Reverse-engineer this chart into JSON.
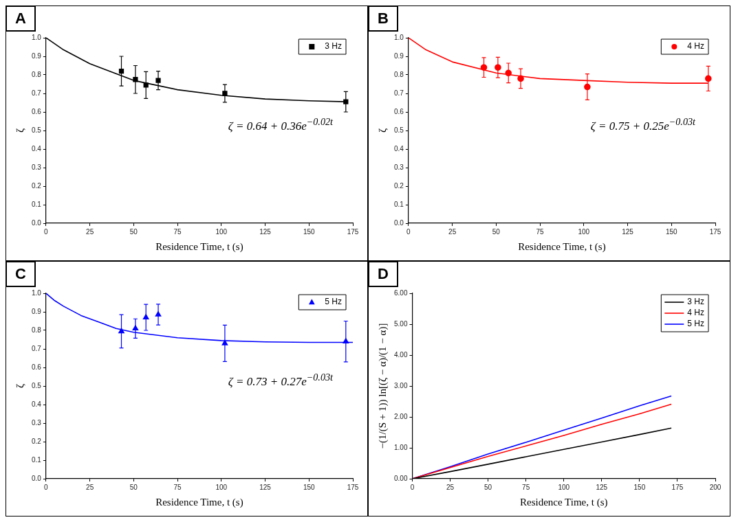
{
  "chart_data": [
    {
      "type": "scatter",
      "title": "A",
      "xlabel": "Residence Time, t (s)",
      "ylabel": "ζ",
      "xlim": [
        0,
        175
      ],
      "xticks": [
        0,
        25,
        50,
        75,
        100,
        125,
        150,
        175
      ],
      "ylim": [
        0,
        1
      ],
      "yticks": [
        {
          "value": 0,
          "label": "0.0"
        },
        0.1,
        0.2,
        0.3,
        0.4,
        0.5,
        0.6,
        0.7,
        0.8,
        0.9,
        {
          "value": 1,
          "label": "1.0"
        }
      ],
      "legend": "top right",
      "annotations": [
        "ζ = 0.64 + 0.36e$^{−0.02t}$"
      ],
      "series": [
        {
          "name": "3 Hz",
          "color": "#000000",
          "marker": "square",
          "x": [
            43,
            51,
            57,
            64,
            102,
            171
          ],
          "values": [
            0.82,
            0.775,
            0.745,
            0.77,
            0.7,
            0.655
          ],
          "errors": [
            0.08,
            0.075,
            0.072,
            0.05,
            0.048,
            0.055
          ]
        },
        {
          "type": "line",
          "color": "#000000",
          "marker": "none",
          "x": [
            0,
            10,
            25,
            50,
            75,
            100,
            125,
            150,
            171
          ],
          "values": [
            1.0,
            0.935,
            0.86,
            0.77,
            0.72,
            0.69,
            0.67,
            0.66,
            0.655
          ]
        }
      ]
    },
    {
      "type": "scatter",
      "title": "B",
      "xlabel": "Residence Time, t (s)",
      "ylabel": "ζ",
      "xlim": [
        0,
        175
      ],
      "xticks": [
        0,
        25,
        50,
        75,
        100,
        125,
        150,
        175
      ],
      "ylim": [
        0,
        1
      ],
      "yticks": [
        {
          "value": 0,
          "label": "0.0"
        },
        0.1,
        0.2,
        0.3,
        0.4,
        0.5,
        0.6,
        0.7,
        0.8,
        0.9,
        {
          "value": 1,
          "label": "1.0"
        }
      ],
      "legend": "top right",
      "annotations": [
        "ζ = 0.75 + 0.25e$^{−0.03t}$"
      ],
      "series": [
        {
          "name": "4 Hz",
          "color": "#ff0000",
          "marker": "circle",
          "x": [
            43,
            51,
            57,
            64,
            102,
            171
          ],
          "values": [
            0.84,
            0.84,
            0.81,
            0.78,
            0.735,
            0.78
          ],
          "errors": [
            0.053,
            0.055,
            0.053,
            0.053,
            0.07,
            0.067
          ]
        },
        {
          "type": "line",
          "color": "#ff0000",
          "marker": "none",
          "x": [
            0,
            10,
            25,
            50,
            75,
            100,
            125,
            150,
            171
          ],
          "values": [
            1.0,
            0.935,
            0.87,
            0.81,
            0.78,
            0.77,
            0.76,
            0.755,
            0.755
          ]
        }
      ]
    },
    {
      "type": "scatter",
      "title": "C",
      "xlabel": "Residence Time, t (s)",
      "ylabel": "ζ",
      "xlim": [
        0,
        175
      ],
      "xticks": [
        0,
        25,
        50,
        75,
        100,
        125,
        150,
        175
      ],
      "ylim": [
        0,
        1
      ],
      "yticks": [
        {
          "value": 0,
          "label": "0.0"
        },
        0.1,
        0.2,
        0.3,
        0.4,
        0.5,
        0.6,
        0.7,
        0.8,
        0.9,
        {
          "value": 1,
          "label": "1.0"
        }
      ],
      "legend": "top right",
      "annotations": [
        "ζ = 0.73 + 0.27e$^{−0.03t}$"
      ],
      "series": [
        {
          "name": "5 Hz",
          "color": "#0000ff",
          "marker": "triangle",
          "x": [
            43,
            51,
            57,
            64,
            102,
            171
          ],
          "values": [
            0.795,
            0.81,
            0.87,
            0.885,
            0.73,
            0.74
          ],
          "errors": [
            0.09,
            0.052,
            0.07,
            0.056,
            0.098,
            0.11
          ]
        },
        {
          "type": "line",
          "color": "#0000ff",
          "marker": "none",
          "x": [
            0,
            5,
            10,
            20,
            30,
            40,
            50,
            75,
            100,
            125,
            150,
            175
          ],
          "values": [
            1.0,
            0.96,
            0.93,
            0.88,
            0.845,
            0.81,
            0.79,
            0.76,
            0.745,
            0.738,
            0.735,
            0.735
          ]
        }
      ]
    },
    {
      "type": "line",
      "title": "D",
      "xlabel": "Residence Time, t (s)",
      "ylabel": "−(1/(S + 1)) ln[(ζ − α)/(1 − α)]",
      "xlim": [
        0,
        200
      ],
      "xticks": [
        0,
        25,
        50,
        75,
        100,
        125,
        150,
        175,
        200
      ],
      "ylim": [
        0,
        6
      ],
      "yticks": [
        {
          "value": 0,
          "label": "0.00"
        },
        {
          "value": 1,
          "label": "1.00"
        },
        {
          "value": 2,
          "label": "2.00"
        },
        {
          "value": 3,
          "label": "3.00"
        },
        {
          "value": 4,
          "label": "4.00"
        },
        {
          "value": 5,
          "label": "5.00"
        },
        {
          "value": 6,
          "label": "6.00"
        }
      ],
      "legend": "top right",
      "marker": "none",
      "series": [
        {
          "name": "3 Hz",
          "color": "#000000",
          "x": [
            0,
            25,
            50,
            75,
            100,
            125,
            150,
            171
          ],
          "values": [
            0,
            0.23,
            0.47,
            0.71,
            0.95,
            1.19,
            1.43,
            1.64
          ]
        },
        {
          "name": "4 Hz",
          "color": "#ff0000",
          "x": [
            0,
            25,
            50,
            75,
            100,
            125,
            150,
            171
          ],
          "values": [
            0,
            0.36,
            0.72,
            1.06,
            1.4,
            1.76,
            2.1,
            2.41
          ]
        },
        {
          "name": "5 Hz",
          "color": "#0000ff",
          "x": [
            0,
            25,
            50,
            75,
            100,
            125,
            150,
            171
          ],
          "values": [
            0,
            0.39,
            0.8,
            1.18,
            1.57,
            1.96,
            2.36,
            2.68
          ]
        }
      ]
    }
  ]
}
